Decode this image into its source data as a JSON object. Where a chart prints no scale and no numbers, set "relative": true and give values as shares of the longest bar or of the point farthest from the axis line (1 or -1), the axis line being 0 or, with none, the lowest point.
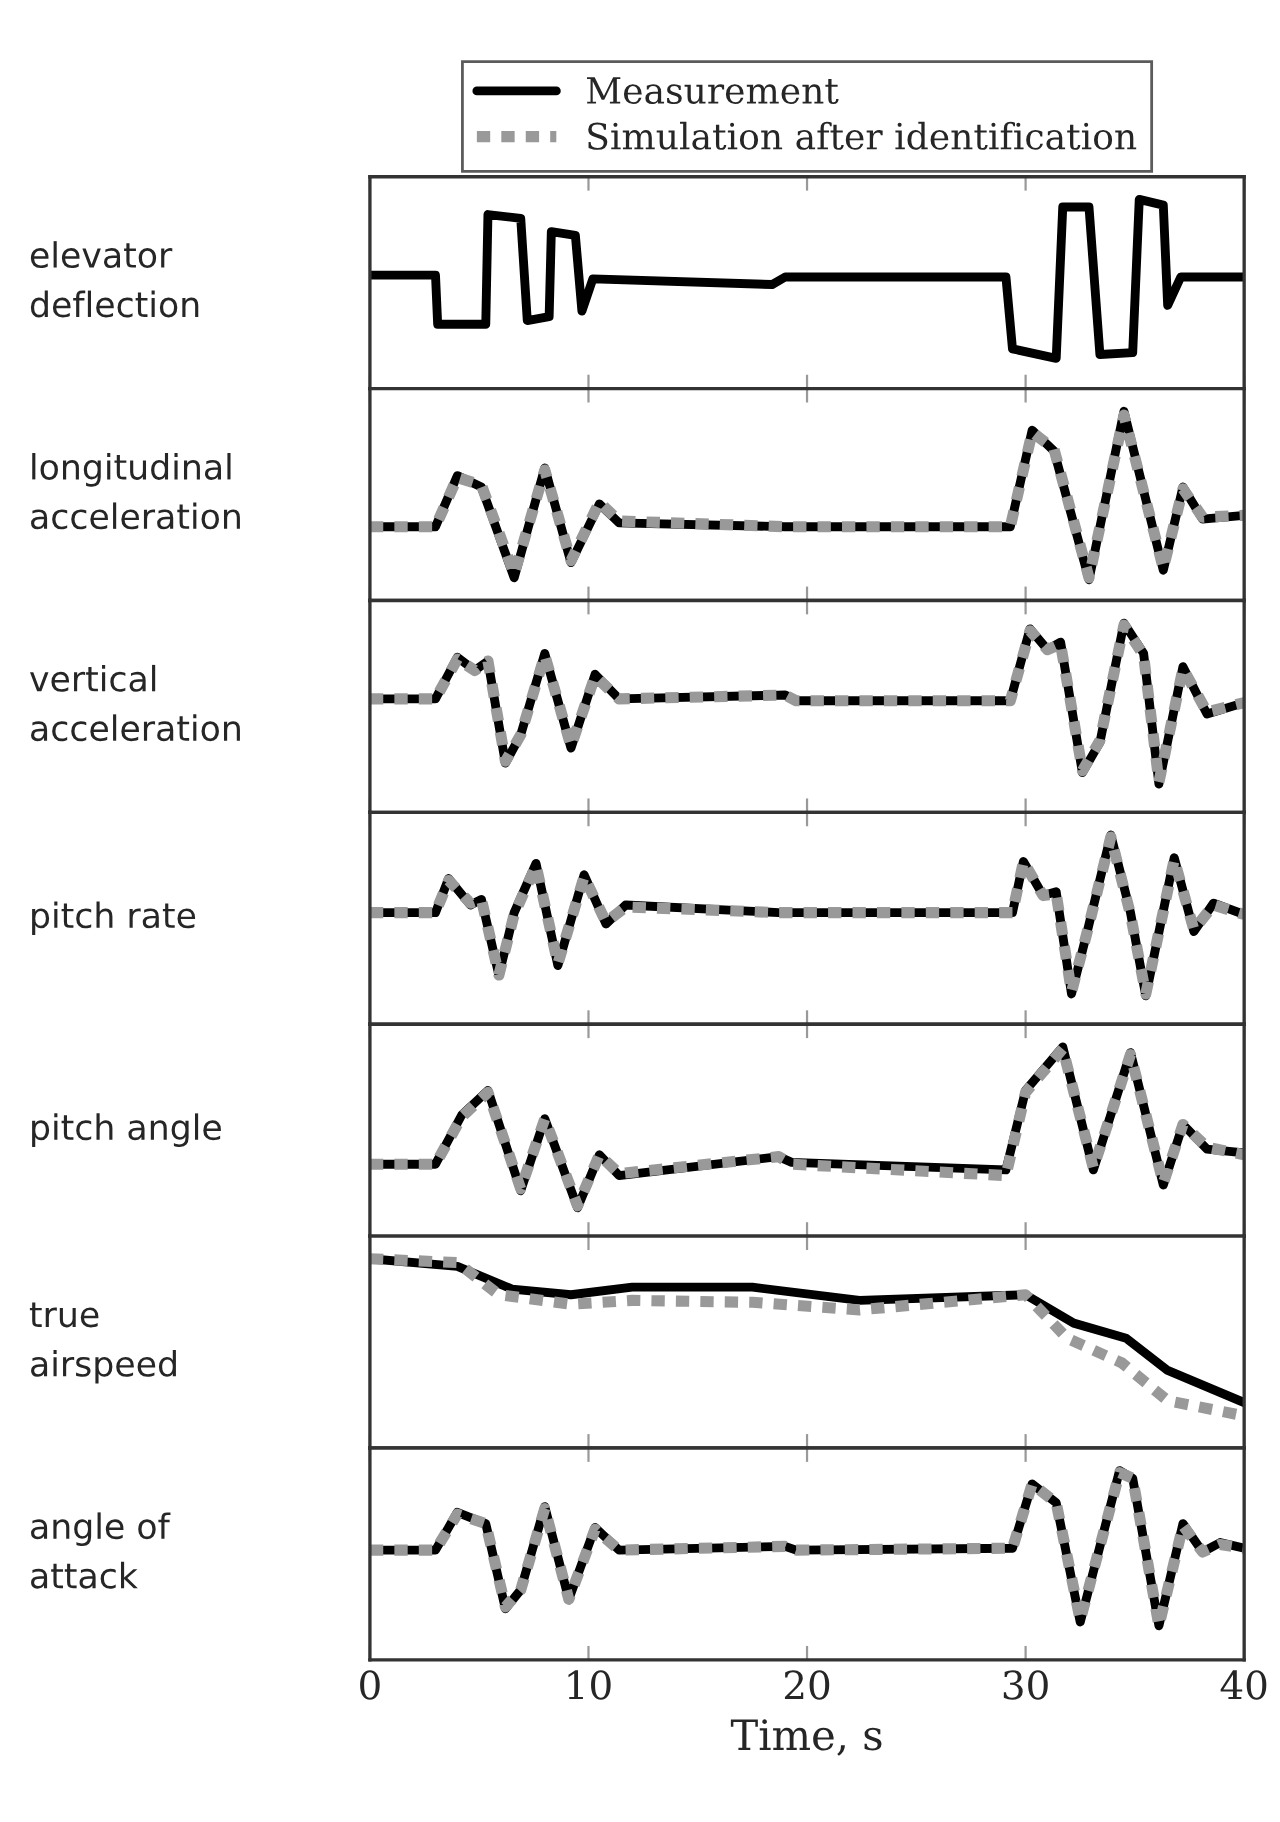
{
  "chart_data": [
    {
      "type": "line",
      "ylabel": "elevator\ndeflection",
      "relative": true,
      "xlim": [
        0,
        40
      ],
      "xticks": [
        0,
        10,
        20,
        30,
        40
      ],
      "tick_labels": false,
      "legend": "top",
      "series": [
        {
          "name": "Measurement",
          "color": "#000000",
          "line_style": "solid",
          "x": [
            0,
            3.0,
            3.1,
            5.3,
            5.4,
            6.9,
            7.2,
            8.2,
            8.3,
            9.4,
            9.7,
            10.2,
            18.4,
            19.0,
            29.1,
            29.4,
            31.4,
            31.7,
            32.9,
            33.4,
            34.9,
            35.2,
            36.3,
            36.5,
            37.1,
            40
          ],
          "values": [
            0.6,
            0.6,
            0.34,
            0.34,
            0.92,
            0.9,
            0.36,
            0.38,
            0.83,
            0.81,
            0.41,
            0.58,
            0.55,
            0.59,
            0.59,
            0.21,
            0.16,
            0.96,
            0.96,
            0.18,
            0.19,
            1.0,
            0.97,
            0.44,
            0.59,
            0.59
          ]
        }
      ]
    },
    {
      "type": "line",
      "ylabel": "longitudinal\nacceleration",
      "relative": true,
      "xlim": [
        0,
        40
      ],
      "xticks": [
        0,
        10,
        20,
        30,
        40
      ],
      "tick_labels": false,
      "series": [
        {
          "name": "Measurement",
          "color": "#000000",
          "line_style": "solid",
          "x": [
            0,
            3.0,
            4.0,
            5.1,
            6.6,
            8.0,
            9.2,
            10.5,
            11.4,
            19.0,
            29.3,
            30.3,
            31.3,
            32.9,
            34.5,
            36.3,
            37.2,
            38.1,
            40
          ],
          "values": [
            0.39,
            0.39,
            0.66,
            0.6,
            0.12,
            0.7,
            0.2,
            0.51,
            0.41,
            0.39,
            0.39,
            0.9,
            0.79,
            0.11,
            1.0,
            0.16,
            0.6,
            0.43,
            0.45
          ]
        },
        {
          "name": "Simulation after identification",
          "color": "#999999",
          "line_style": "dashed",
          "x": [
            0,
            3.0,
            4.0,
            5.1,
            6.6,
            8.0,
            9.2,
            10.5,
            11.4,
            19.0,
            29.3,
            30.3,
            31.3,
            32.9,
            34.5,
            36.3,
            37.2,
            38.1,
            40
          ],
          "values": [
            0.39,
            0.39,
            0.65,
            0.61,
            0.14,
            0.69,
            0.21,
            0.52,
            0.42,
            0.39,
            0.39,
            0.89,
            0.8,
            0.12,
            0.98,
            0.17,
            0.59,
            0.44,
            0.45
          ]
        }
      ]
    },
    {
      "type": "line",
      "ylabel": "vertical\nacceleration",
      "relative": true,
      "xlim": [
        0,
        40
      ],
      "xticks": [
        0,
        10,
        20,
        30,
        40
      ],
      "tick_labels": false,
      "series": [
        {
          "name": "Measurement",
          "color": "#000000",
          "line_style": "solid",
          "x": [
            0,
            3.0,
            4.0,
            4.8,
            5.4,
            6.2,
            6.9,
            8.0,
            9.2,
            10.3,
            11.4,
            19.0,
            19.5,
            29.3,
            30.2,
            31.0,
            31.6,
            32.6,
            33.4,
            34.5,
            35.4,
            36.1,
            37.2,
            38.3,
            40
          ],
          "values": [
            0.6,
            0.6,
            0.82,
            0.75,
            0.8,
            0.26,
            0.41,
            0.84,
            0.34,
            0.73,
            0.6,
            0.62,
            0.59,
            0.59,
            0.97,
            0.86,
            0.9,
            0.21,
            0.37,
            1.0,
            0.84,
            0.15,
            0.77,
            0.52,
            0.58
          ]
        },
        {
          "name": "Simulation after identification",
          "color": "#999999",
          "line_style": "dashed",
          "x": [
            0,
            3.0,
            4.0,
            4.8,
            5.4,
            6.2,
            6.9,
            8.0,
            9.2,
            10.3,
            11.4,
            19.0,
            19.5,
            29.3,
            30.2,
            31.0,
            31.6,
            32.6,
            33.4,
            34.5,
            35.4,
            36.1,
            37.2,
            38.3,
            40
          ],
          "values": [
            0.6,
            0.6,
            0.81,
            0.75,
            0.8,
            0.27,
            0.41,
            0.83,
            0.35,
            0.72,
            0.6,
            0.62,
            0.59,
            0.59,
            0.96,
            0.86,
            0.89,
            0.22,
            0.38,
            0.99,
            0.83,
            0.16,
            0.76,
            0.53,
            0.58
          ]
        }
      ]
    },
    {
      "type": "line",
      "ylabel": "pitch rate",
      "relative": true,
      "xlim": [
        0,
        40
      ],
      "xticks": [
        0,
        10,
        20,
        30,
        40
      ],
      "tick_labels": false,
      "series": [
        {
          "name": "Measurement",
          "color": "#000000",
          "line_style": "solid",
          "x": [
            0,
            3.0,
            3.6,
            4.6,
            5.1,
            5.9,
            6.6,
            7.6,
            8.6,
            9.8,
            10.8,
            11.7,
            18.7,
            29.4,
            29.9,
            30.8,
            31.4,
            32.1,
            32.8,
            33.9,
            34.8,
            35.5,
            36.8,
            37.7,
            38.6,
            40
          ],
          "values": [
            0.59,
            0.59,
            0.77,
            0.63,
            0.66,
            0.26,
            0.59,
            0.85,
            0.31,
            0.79,
            0.53,
            0.63,
            0.59,
            0.59,
            0.86,
            0.68,
            0.7,
            0.16,
            0.48,
            1.0,
            0.59,
            0.15,
            0.88,
            0.49,
            0.64,
            0.58
          ]
        },
        {
          "name": "Simulation after identification",
          "color": "#999999",
          "line_style": "dashed",
          "x": [
            0,
            3.0,
            3.6,
            4.6,
            5.1,
            5.9,
            6.6,
            7.6,
            8.6,
            9.8,
            10.8,
            11.7,
            18.7,
            29.4,
            29.9,
            30.8,
            31.4,
            32.1,
            32.8,
            33.9,
            34.8,
            35.5,
            36.8,
            37.7,
            38.6,
            40
          ],
          "values": [
            0.59,
            0.59,
            0.76,
            0.64,
            0.66,
            0.26,
            0.58,
            0.84,
            0.32,
            0.78,
            0.54,
            0.62,
            0.59,
            0.59,
            0.86,
            0.68,
            0.69,
            0.17,
            0.48,
            0.99,
            0.58,
            0.16,
            0.87,
            0.5,
            0.63,
            0.58
          ]
        }
      ]
    },
    {
      "type": "line",
      "ylabel": "pitch angle",
      "relative": true,
      "xlim": [
        0,
        40
      ],
      "xticks": [
        0,
        10,
        20,
        30,
        40
      ],
      "tick_labels": false,
      "series": [
        {
          "name": "Measurement",
          "color": "#000000",
          "line_style": "solid",
          "x": [
            0,
            3.0,
            4.2,
            5.4,
            6.9,
            8.0,
            9.5,
            10.5,
            11.4,
            18.7,
            19.3,
            29.1,
            30.0,
            31.7,
            33.1,
            34.8,
            36.3,
            37.2,
            38.3,
            40
          ],
          "values": [
            0.38,
            0.38,
            0.64,
            0.77,
            0.24,
            0.62,
            0.15,
            0.43,
            0.32,
            0.42,
            0.39,
            0.35,
            0.77,
            1.0,
            0.35,
            0.97,
            0.27,
            0.59,
            0.46,
            0.44
          ]
        },
        {
          "name": "Simulation after identification",
          "color": "#999999",
          "line_style": "dashed",
          "x": [
            0,
            3.0,
            4.2,
            5.4,
            6.9,
            8.0,
            9.5,
            10.5,
            11.4,
            18.7,
            19.3,
            29.1,
            30.0,
            31.7,
            33.1,
            34.8,
            36.3,
            37.2,
            38.3,
            40
          ],
          "values": [
            0.38,
            0.38,
            0.63,
            0.76,
            0.25,
            0.62,
            0.16,
            0.43,
            0.33,
            0.42,
            0.38,
            0.32,
            0.76,
            0.99,
            0.36,
            0.96,
            0.28,
            0.59,
            0.47,
            0.43
          ]
        }
      ]
    },
    {
      "type": "line",
      "ylabel": "true\nairspeed",
      "relative": true,
      "xlim": [
        0,
        40
      ],
      "xticks": [
        0,
        10,
        20,
        30,
        40
      ],
      "tick_labels": false,
      "series": [
        {
          "name": "Measurement",
          "color": "#000000",
          "line_style": "solid",
          "x": [
            0,
            4.0,
            6.5,
            9.2,
            12.0,
            17.5,
            22.4,
            30.0,
            32.2,
            34.6,
            36.5,
            40
          ],
          "values": [
            1.0,
            0.96,
            0.84,
            0.81,
            0.85,
            0.85,
            0.78,
            0.81,
            0.66,
            0.58,
            0.41,
            0.24
          ]
        },
        {
          "name": "Simulation after identification",
          "color": "#999999",
          "line_style": "dashed",
          "x": [
            0,
            4.0,
            5.9,
            9.2,
            12.0,
            17.5,
            22.4,
            30.0,
            31.9,
            34.4,
            36.5,
            40
          ],
          "values": [
            1.0,
            0.98,
            0.81,
            0.76,
            0.78,
            0.77,
            0.73,
            0.81,
            0.58,
            0.45,
            0.25,
            0.17
          ]
        }
      ]
    },
    {
      "type": "line",
      "ylabel": "angle of\nattack",
      "xlabel": "Time, s",
      "relative": true,
      "xlim": [
        0,
        40
      ],
      "xticks": [
        0,
        10,
        20,
        30,
        40
      ],
      "tick_labels": "x",
      "series": [
        {
          "name": "Measurement",
          "color": "#000000",
          "line_style": "solid",
          "x": [
            0,
            3.0,
            4.0,
            5.3,
            6.2,
            6.9,
            8.0,
            9.1,
            10.3,
            11.4,
            19.0,
            19.5,
            29.4,
            30.3,
            31.4,
            32.5,
            34.3,
            34.9,
            36.1,
            37.2,
            38.1,
            38.9,
            40
          ],
          "values": [
            0.58,
            0.58,
            0.78,
            0.72,
            0.27,
            0.37,
            0.81,
            0.32,
            0.7,
            0.58,
            0.6,
            0.58,
            0.59,
            0.93,
            0.83,
            0.2,
            1.0,
            0.96,
            0.18,
            0.72,
            0.57,
            0.62,
            0.59
          ]
        },
        {
          "name": "Simulation after identification",
          "color": "#999999",
          "line_style": "dashed",
          "x": [
            0,
            3.0,
            4.0,
            5.3,
            6.2,
            6.9,
            8.0,
            9.1,
            10.3,
            11.4,
            19.0,
            19.5,
            29.4,
            30.3,
            31.4,
            32.5,
            34.3,
            34.9,
            36.1,
            37.2,
            38.1,
            38.9,
            40
          ],
          "values": [
            0.58,
            0.58,
            0.77,
            0.72,
            0.28,
            0.37,
            0.8,
            0.32,
            0.69,
            0.58,
            0.6,
            0.58,
            0.59,
            0.93,
            0.83,
            0.21,
            0.99,
            0.96,
            0.18,
            0.71,
            0.57,
            0.61,
            0.59
          ]
        }
      ]
    }
  ]
}
